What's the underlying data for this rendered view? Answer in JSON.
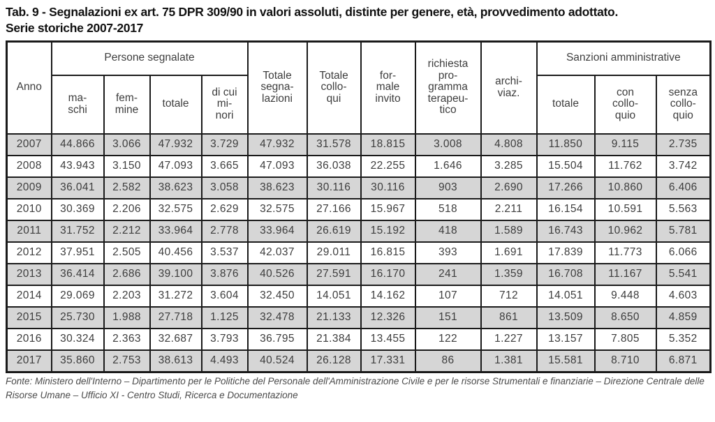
{
  "page": {
    "title": "Tab. 9 - Segnalazioni ex art. 75 DPR 309/90 in valori assoluti, distinte per genere, età, provvedimento adottato.\nSerie storiche 2007-2017",
    "source_note": "Fonte: Ministero dell'Interno – Dipartimento per le Politiche del Personale dell'Amministrazione Civile e per le risorse Strumentali e finanziarie – Direzione Centrale delle Risorse Umane – Ufficio XI - Centro Studi, Ricerca e Documentazione"
  },
  "colors": {
    "row_shaded": "#d6d6d6",
    "border": "#1a1a1a",
    "cell_text": "#3d3d3d"
  },
  "table": {
    "header": {
      "anno": "Anno",
      "group_persone": "Persone segnalate",
      "maschi": "ma-\nschi",
      "femmine": "fem-\nmine",
      "totale": "totale",
      "di_cui_minori": "di cui\nmi-\nnori",
      "totale_segnalazioni": "Totale\nsegna-\nlazioni",
      "totale_colloqui": "Totale\ncollo-\nqui",
      "formale_invito": "for-\nmale\ninvito",
      "richiesta_programma": "richiesta\npro-\ngramma\nterapeu-\ntico",
      "archiviazione": "archi-\nviaz.",
      "group_sanzioni": "Sanzioni amministrative",
      "sanzioni_totale": "totale",
      "sanzioni_con_colloquio": "con\ncollo-\nquio",
      "sanzioni_senza_colloquio": "senza\ncollo-\nquio"
    },
    "rows": [
      [
        "2007",
        "44.866",
        "3.066",
        "47.932",
        "3.729",
        "47.932",
        "31.578",
        "18.815",
        "3.008",
        "4.808",
        "11.850",
        "9.115",
        "2.735"
      ],
      [
        "2008",
        "43.943",
        "3.150",
        "47.093",
        "3.665",
        "47.093",
        "36.038",
        "22.255",
        "1.646",
        "3.285",
        "15.504",
        "11.762",
        "3.742"
      ],
      [
        "2009",
        "36.041",
        "2.582",
        "38.623",
        "3.058",
        "38.623",
        "30.116",
        "30.116",
        "903",
        "2.690",
        "17.266",
        "10.860",
        "6.406"
      ],
      [
        "2010",
        "30.369",
        "2.206",
        "32.575",
        "2.629",
        "32.575",
        "27.166",
        "15.967",
        "518",
        "2.211",
        "16.154",
        "10.591",
        "5.563"
      ],
      [
        "2011",
        "31.752",
        "2.212",
        "33.964",
        "2.778",
        "33.964",
        "26.619",
        "15.192",
        "418",
        "1.589",
        "16.743",
        "10.962",
        "5.781"
      ],
      [
        "2012",
        "37.951",
        "2.505",
        "40.456",
        "3.537",
        "42.037",
        "29.011",
        "16.815",
        "393",
        "1.691",
        "17.839",
        "11.773",
        "6.066"
      ],
      [
        "2013",
        "36.414",
        "2.686",
        "39.100",
        "3.876",
        "40.526",
        "27.591",
        "16.170",
        "241",
        "1.359",
        "16.708",
        "11.167",
        "5.541"
      ],
      [
        "2014",
        "29.069",
        "2.203",
        "31.272",
        "3.604",
        "32.450",
        "14.051",
        "14.162",
        "107",
        "712",
        "14.051",
        "9.448",
        "4.603"
      ],
      [
        "2015",
        "25.730",
        "1.988",
        "27.718",
        "1.125",
        "32.478",
        "21.133",
        "12.326",
        "151",
        "861",
        "13.509",
        "8.650",
        "4.859"
      ],
      [
        "2016",
        "30.324",
        "2.363",
        "32.687",
        "3.793",
        "36.795",
        "21.384",
        "13.455",
        "122",
        "1.227",
        "13.157",
        "7.805",
        "5.352"
      ],
      [
        "2017",
        "35.860",
        "2.753",
        "38.613",
        "4.493",
        "40.524",
        "26.128",
        "17.331",
        "86",
        "1.381",
        "15.581",
        "8.710",
        "6.871"
      ]
    ]
  }
}
